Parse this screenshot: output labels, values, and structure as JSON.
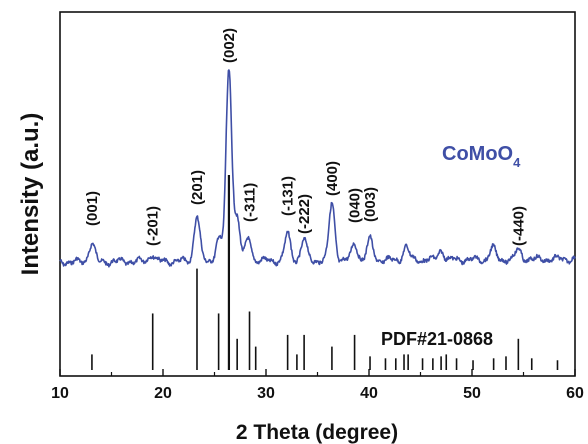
{
  "chart_data": {
    "type": "line",
    "title": "",
    "xlabel": "2 Theta (degree)",
    "ylabel": "Intensity (a.u.)",
    "xlim": [
      10,
      60
    ],
    "xticks": [
      10,
      20,
      30,
      40,
      50,
      60
    ],
    "yticks_shown": false,
    "grid": false,
    "series": [
      {
        "name": "CoMoO4",
        "color": "#3f4fa6",
        "peaks": [
          {
            "x": 13.1,
            "h": 0.1
          },
          {
            "x": 18.9,
            "h": 0.04
          },
          {
            "x": 23.3,
            "h": 0.24
          },
          {
            "x": 25.4,
            "h": 0.12
          },
          {
            "x": 26.4,
            "h": 1.0
          },
          {
            "x": 27.2,
            "h": 0.22
          },
          {
            "x": 28.3,
            "h": 0.12
          },
          {
            "x": 32.1,
            "h": 0.14
          },
          {
            "x": 33.7,
            "h": 0.11
          },
          {
            "x": 36.4,
            "h": 0.3
          },
          {
            "x": 38.6,
            "h": 0.09
          },
          {
            "x": 40.1,
            "h": 0.11
          },
          {
            "x": 43.6,
            "h": 0.07
          },
          {
            "x": 47.0,
            "h": 0.05
          },
          {
            "x": 52.0,
            "h": 0.06
          },
          {
            "x": 54.5,
            "h": 0.05
          }
        ]
      },
      {
        "name": "PDF#21-0868",
        "color": "#111111",
        "type": "stick",
        "sticks": [
          {
            "x": 13.1,
            "h": 0.08
          },
          {
            "x": 19.0,
            "h": 0.29
          },
          {
            "x": 23.3,
            "h": 0.52
          },
          {
            "x": 25.4,
            "h": 0.29
          },
          {
            "x": 26.4,
            "h": 1.0
          },
          {
            "x": 27.2,
            "h": 0.16
          },
          {
            "x": 28.4,
            "h": 0.3
          },
          {
            "x": 29.0,
            "h": 0.12
          },
          {
            "x": 32.1,
            "h": 0.18
          },
          {
            "x": 33.0,
            "h": 0.08
          },
          {
            "x": 33.7,
            "h": 0.18
          },
          {
            "x": 36.4,
            "h": 0.12
          },
          {
            "x": 38.6,
            "h": 0.18
          },
          {
            "x": 40.1,
            "h": 0.07
          },
          {
            "x": 41.6,
            "h": 0.06
          },
          {
            "x": 42.6,
            "h": 0.06
          },
          {
            "x": 43.4,
            "h": 0.08
          },
          {
            "x": 43.8,
            "h": 0.08
          },
          {
            "x": 45.2,
            "h": 0.06
          },
          {
            "x": 46.2,
            "h": 0.06
          },
          {
            "x": 47.0,
            "h": 0.07
          },
          {
            "x": 47.5,
            "h": 0.08
          },
          {
            "x": 48.5,
            "h": 0.06
          },
          {
            "x": 50.1,
            "h": 0.05
          },
          {
            "x": 52.1,
            "h": 0.06
          },
          {
            "x": 53.3,
            "h": 0.07
          },
          {
            "x": 54.5,
            "h": 0.16
          },
          {
            "x": 55.8,
            "h": 0.06
          },
          {
            "x": 58.3,
            "h": 0.05
          }
        ]
      }
    ],
    "annotations": [
      {
        "text": "(001)",
        "x": 13.1
      },
      {
        "text": "(-201)",
        "x": 19.0
      },
      {
        "text": "(201)",
        "x": 23.3
      },
      {
        "text": "(002)",
        "x": 26.4
      },
      {
        "text": "(-311)",
        "x": 28.4
      },
      {
        "text": "(-131)",
        "x": 32.1
      },
      {
        "text": "(-222)",
        "x": 33.7
      },
      {
        "text": "(400)",
        "x": 36.4
      },
      {
        "text": "(040)",
        "x": 38.6
      },
      {
        "text": "(003)",
        "x": 40.1
      },
      {
        "text": "(-440)",
        "x": 54.5
      }
    ]
  },
  "legend": {
    "sample_main": "CoMoO",
    "sample_sub": "4",
    "reference": "PDF#21-0868"
  }
}
